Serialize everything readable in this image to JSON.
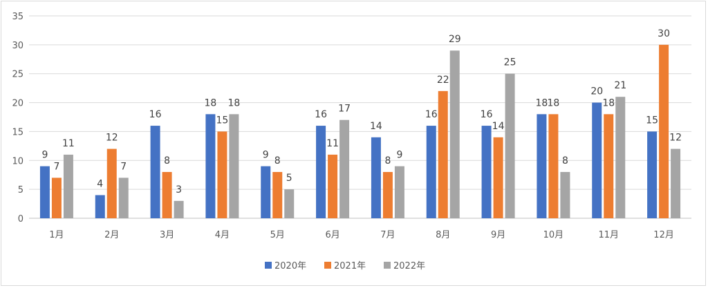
{
  "chart_data": {
    "type": "bar",
    "categories": [
      "1月",
      "2月",
      "3月",
      "4月",
      "5月",
      "6月",
      "7月",
      "8月",
      "9月",
      "10月",
      "11月",
      "12月"
    ],
    "series": [
      {
        "name": "2020年",
        "color": "#4472c4",
        "values": [
          9,
          4,
          16,
          18,
          9,
          16,
          14,
          16,
          16,
          18,
          20,
          15
        ]
      },
      {
        "name": "2021年",
        "color": "#ed7d31",
        "values": [
          7,
          12,
          8,
          15,
          8,
          11,
          8,
          22,
          14,
          18,
          18,
          30
        ]
      },
      {
        "name": "2022年",
        "color": "#a5a5a5",
        "values": [
          11,
          7,
          3,
          18,
          5,
          17,
          9,
          29,
          25,
          8,
          21,
          12
        ]
      }
    ],
    "ylim": [
      0,
      35
    ],
    "yticks": [
      0,
      5,
      10,
      15,
      20,
      25,
      30,
      35
    ],
    "grid": true,
    "legend_position": "bottom",
    "title": "",
    "xlabel": "",
    "ylabel": ""
  }
}
